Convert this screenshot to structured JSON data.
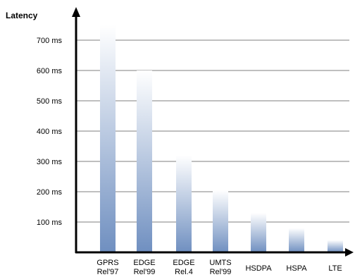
{
  "chart_data": {
    "type": "bar",
    "ylabel": "Latency",
    "xlabel": "",
    "ylim": [
      0,
      800
    ],
    "grid": true,
    "yticks": [
      {
        "value": 100,
        "label": "100 ms"
      },
      {
        "value": 200,
        "label": "200 ms"
      },
      {
        "value": 300,
        "label": "300 ms"
      },
      {
        "value": 400,
        "label": "400 ms"
      },
      {
        "value": 500,
        "label": "500 ms"
      },
      {
        "value": 600,
        "label": "600 ms"
      },
      {
        "value": 700,
        "label": "700 ms"
      }
    ],
    "categories": [
      [
        "GPRS",
        "Rel'97"
      ],
      [
        "EDGE",
        "Rel'99"
      ],
      [
        "EDGE",
        "Rel.4"
      ],
      [
        "UMTS",
        "Rel'99"
      ],
      [
        "HSDPA"
      ],
      [
        "HSPA"
      ],
      [
        "LTE"
      ]
    ],
    "values": [
      750,
      600,
      320,
      205,
      130,
      80,
      40
    ],
    "bar_color_top": "#ffffff",
    "bar_color_bottom": "#6f8fc0",
    "axis_color": "#000000",
    "grid_color": "#555555"
  }
}
